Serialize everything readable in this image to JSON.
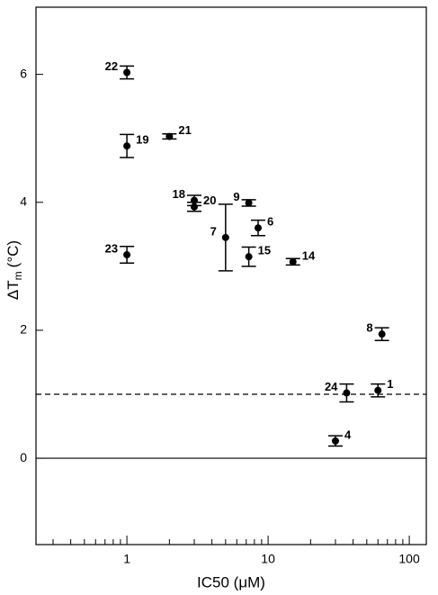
{
  "chart_data": {
    "type": "scatter",
    "x_label": "IC50 (μM)",
    "y_label": {
      "main": "ΔT",
      "sub": "m",
      "unit": "(°C)"
    },
    "xscale": "log",
    "xlim": [
      0.227,
      132
    ],
    "xticks": [
      1,
      10,
      100
    ],
    "xminorticks": [
      0.3,
      0.4,
      0.5,
      0.6,
      0.7,
      0.8,
      0.9,
      2,
      3,
      4,
      5,
      6,
      7,
      8,
      9,
      20,
      30,
      40,
      50,
      60,
      70,
      80,
      90
    ],
    "ylim": [
      -1.35,
      7.05
    ],
    "yticks": [
      0,
      2,
      4,
      6
    ],
    "hlines": [
      {
        "value": 0,
        "style": "solid"
      },
      {
        "value": 1,
        "style": "dashed"
      }
    ],
    "color": "#000000",
    "series": [
      {
        "labels": [
          "22",
          "19",
          "21",
          "18",
          "20",
          "7",
          "9",
          "6",
          "15",
          "14",
          "23",
          "8",
          "1",
          "24",
          "4"
        ],
        "x": [
          1,
          1,
          2,
          3,
          3,
          5,
          7.3,
          8.5,
          7.3,
          15,
          1,
          64,
          60,
          36,
          30
        ],
        "values": [
          6.03,
          4.88,
          5.03,
          4.03,
          3.93,
          3.45,
          3.99,
          3.6,
          3.15,
          3.07,
          3.18,
          1.94,
          1.06,
          1.02,
          0.27
        ],
        "errors": [
          0.1,
          0.18,
          0.04,
          0.08,
          0.07,
          0.52,
          0.05,
          0.12,
          0.15,
          0.05,
          0.13,
          0.1,
          0.1,
          0.14,
          0.08
        ]
      }
    ]
  }
}
